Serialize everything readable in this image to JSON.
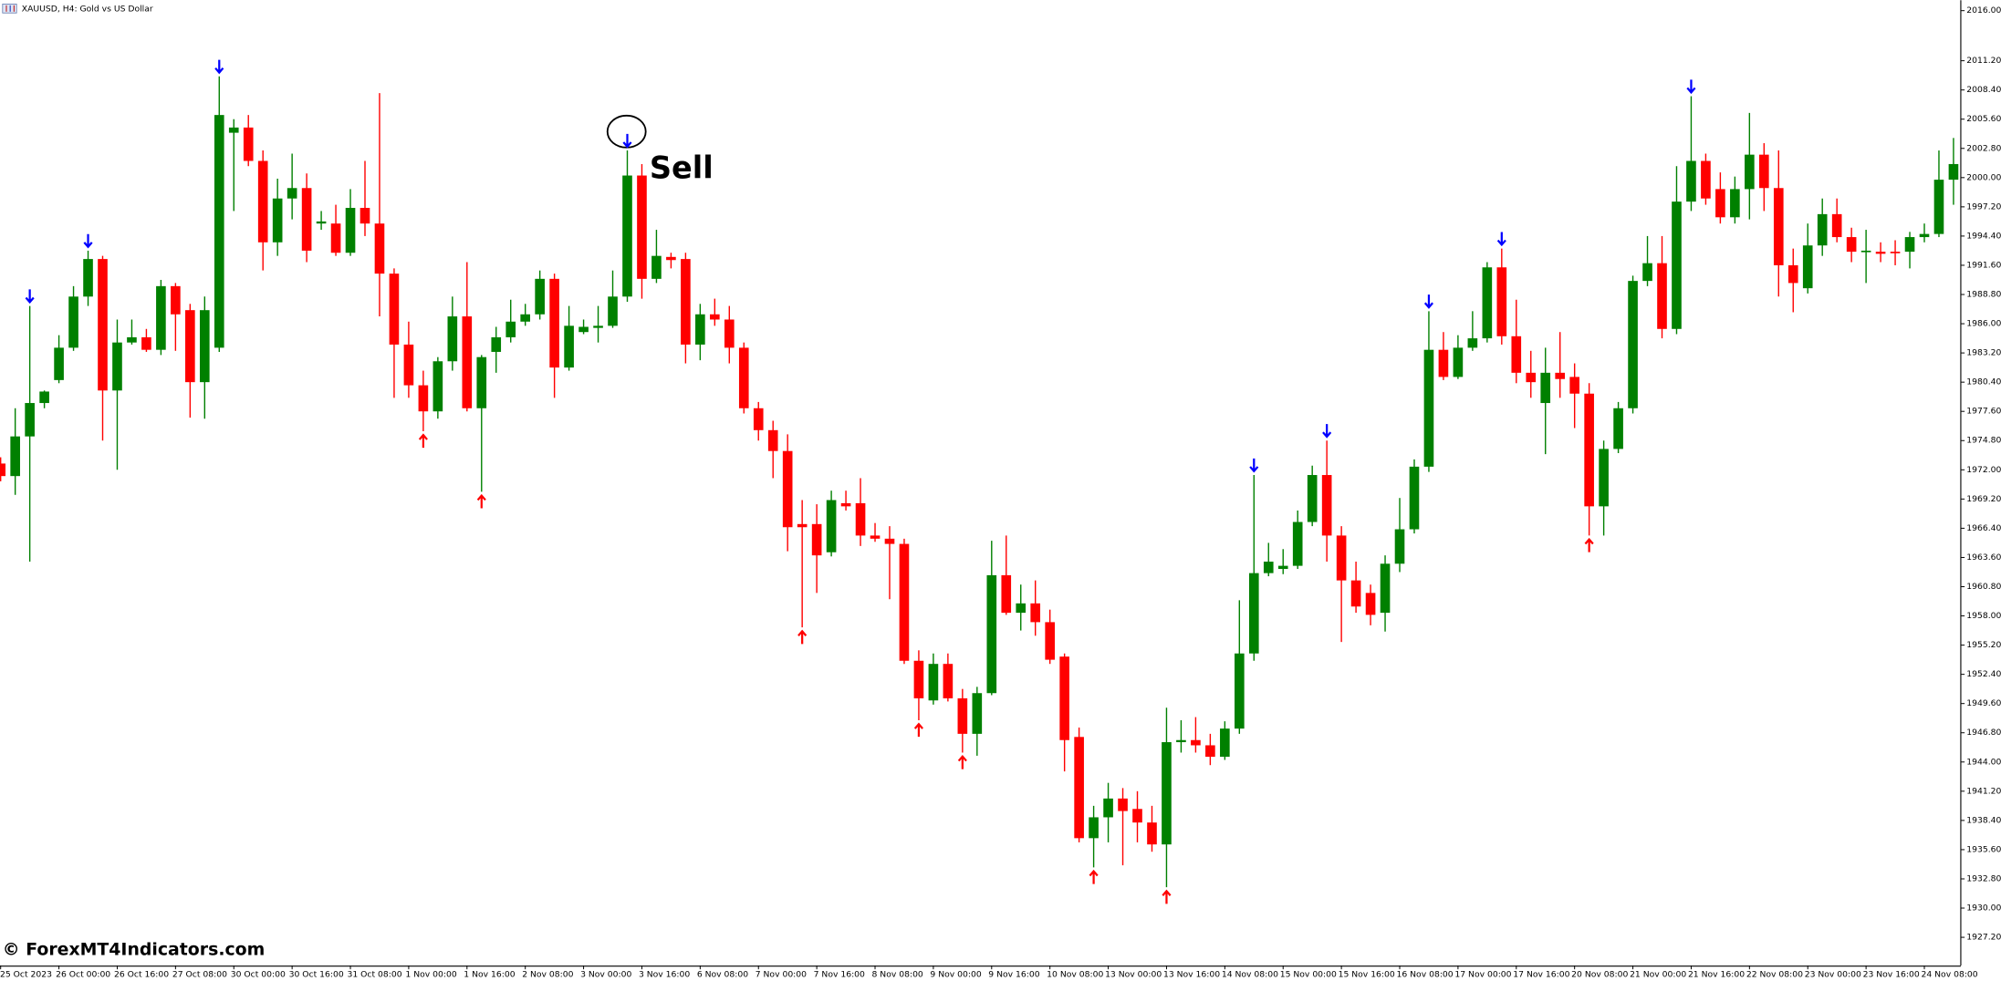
{
  "chart_data": {
    "type": "candlestick",
    "title": "XAUUSD, H4:  Gold vs US Dollar",
    "annotation": "Sell",
    "watermark": "© ForexMT4Indicators.com",
    "up_color": "#008000",
    "down_color": "#ff0000",
    "sell_color": "#0000ff",
    "buy_color": "#ff0000",
    "categories": [
      "25 Oct 2023",
      null,
      null,
      null,
      "26 Oct 00:00",
      null,
      null,
      null,
      "26 Oct 16:00",
      null,
      null,
      null,
      "27 Oct 08:00",
      null,
      null,
      null,
      "30 Oct 00:00",
      null,
      null,
      null,
      "30 Oct 16:00",
      null,
      null,
      null,
      "31 Oct 08:00",
      null,
      null,
      null,
      "1 Nov 00:00",
      null,
      null,
      null,
      "1 Nov 16:00",
      null,
      null,
      null,
      "2 Nov 08:00",
      null,
      null,
      null,
      "3 Nov 00:00",
      null,
      null,
      null,
      "3 Nov 16:00",
      null,
      null,
      null,
      "6 Nov 08:00",
      null,
      null,
      null,
      "7 Nov 00:00",
      null,
      null,
      null,
      "7 Nov 16:00",
      null,
      null,
      null,
      "8 Nov 08:00",
      null,
      null,
      null,
      "9 Nov 00:00",
      null,
      null,
      null,
      "9 Nov 16:00",
      null,
      null,
      null,
      "10 Nov 08:00",
      null,
      null,
      null,
      "13 Nov 00:00",
      null,
      null,
      null,
      "13 Nov 16:00",
      null,
      null,
      null,
      "14 Nov 08:00",
      null,
      null,
      null,
      "15 Nov 00:00",
      null,
      null,
      null,
      "15 Nov 16:00",
      null,
      null,
      null,
      "16 Nov 08:00",
      null,
      null,
      null,
      "17 Nov 00:00",
      null,
      null,
      null,
      "17 Nov 16:00",
      null,
      null,
      null,
      "20 Nov 08:00",
      null,
      null,
      null,
      "21 Nov 00:00",
      null,
      null,
      null,
      "21 Nov 16:00",
      null,
      null,
      null,
      "22 Nov 08:00",
      null,
      null,
      null,
      "23 Nov 00:00",
      null,
      null,
      null,
      "23 Nov 16:00",
      null,
      null,
      null,
      "24 Nov 08:00",
      null,
      null
    ],
    "open": [
      1972.6,
      1971.4,
      1975.2,
      1978.4,
      1980.6,
      1983.7,
      1988.6,
      1992.2,
      1979.6,
      1984.2,
      1984.7,
      1983.5,
      1989.6,
      1987.3,
      1980.4,
      1983.7,
      2004.3,
      2004.8,
      2001.6,
      1993.8,
      1998.0,
      1999.0,
      1995.6,
      1995.6,
      1992.8,
      1997.1,
      1995.6,
      1990.8,
      1984.0,
      1980.1,
      1977.6,
      1982.4,
      1986.7,
      1977.9,
      1983.3,
      1984.7,
      1986.2,
      1986.9,
      1990.3,
      1981.8,
      1985.2,
      1985.6,
      1985.8,
      1988.6,
      2000.2,
      1990.3,
      1992.4,
      1992.2,
      1984.0,
      1986.9,
      1986.4,
      1983.7,
      1977.9,
      1975.8,
      1973.8,
      1966.8,
      1966.8,
      1964.1,
      1968.8,
      1968.8,
      1965.7,
      1965.4,
      1964.9,
      1953.7,
      1949.9,
      1953.4,
      1950.1,
      1946.7,
      1950.6,
      1961.9,
      1958.3,
      1959.2,
      1957.4,
      1954.1,
      1946.4,
      1936.7,
      1938.7,
      1940.5,
      1939.5,
      1938.2,
      1936.1,
      1945.9,
      1946.1,
      1945.6,
      1944.5,
      1947.2,
      1954.4,
      1962.1,
      1962.5,
      1962.8,
      1967.0,
      1971.5,
      1965.7,
      1961.4,
      1960.2,
      1958.3,
      1963.0,
      1966.3,
      1972.3,
      1983.5,
      1980.9,
      1983.7,
      1984.6,
      1991.4,
      1984.8,
      1981.3,
      1978.4,
      1981.3,
      1980.9,
      1979.3,
      1968.5,
      1974.0,
      1977.9,
      1990.1,
      1991.8,
      1985.5,
      1997.7,
      2001.6,
      1998.9,
      1996.2,
      1998.9,
      2002.2,
      1999.0,
      1991.6,
      1989.4,
      1993.5,
      1996.5,
      1994.3,
      1992.9,
      1992.9,
      1992.9,
      1992.9,
      1994.3,
      1994.6,
      1999.8
    ],
    "high": [
      1973.2,
      1977.9,
      1987.7,
      1979.6,
      1984.9,
      1989.6,
      1993.0,
      1992.5,
      1986.4,
      1986.4,
      1985.5,
      1990.2,
      1989.9,
      1987.9,
      1988.6,
      2009.7,
      2005.6,
      2006.0,
      2002.6,
      1999.9,
      2002.3,
      2000.4,
      1996.8,
      1997.4,
      1998.9,
      2001.6,
      2008.1,
      1991.3,
      1986.2,
      1981.5,
      1982.8,
      1988.6,
      1991.9,
      1983.0,
      1985.7,
      1988.3,
      1987.9,
      1991.1,
      1990.8,
      1987.7,
      1986.4,
      1987.7,
      1991.1,
      2002.6,
      2001.3,
      1995.0,
      1992.8,
      1992.8,
      1987.9,
      1988.4,
      1987.7,
      1984.2,
      1978.5,
      1976.7,
      1975.4,
      1969.1,
      1968.7,
      1970.0,
      1970.0,
      1971.2,
      1966.9,
      1966.6,
      1965.4,
      1954.7,
      1954.4,
      1954.4,
      1951.0,
      1951.2,
      1965.2,
      1965.7,
      1961.0,
      1961.4,
      1958.6,
      1954.4,
      1947.3,
      1939.8,
      1942.0,
      1941.5,
      1941.2,
      1939.8,
      1949.2,
      1948.0,
      1948.3,
      1946.7,
      1947.9,
      1959.5,
      1971.5,
      1965.0,
      1964.4,
      1968.1,
      1972.4,
      1974.8,
      1966.6,
      1963.2,
      1961.0,
      1963.8,
      1969.3,
      1973.0,
      1987.2,
      1985.2,
      1984.9,
      1987.2,
      1991.9,
      1993.2,
      1988.3,
      1983.4,
      1983.7,
      1985.2,
      1982.2,
      1980.3,
      1974.8,
      1978.5,
      1990.6,
      1994.4,
      1994.4,
      2001.1,
      2007.8,
      2002.3,
      2000.5,
      2000.1,
      2006.2,
      2003.3,
      2002.6,
      1993.2,
      1995.6,
      1998.0,
      1998.0,
      1995.2,
      1995.0,
      1993.8,
      1994.0,
      1994.8,
      1995.6,
      2002.6,
      2003.8
    ],
    "low": [
      1970.9,
      1969.6,
      1963.2,
      1977.9,
      1980.3,
      1983.4,
      1987.7,
      1974.8,
      1972.0,
      1984.0,
      1983.3,
      1983.0,
      1983.4,
      1977.0,
      1976.9,
      1983.3,
      1996.8,
      2001.1,
      1991.1,
      1992.5,
      1996.0,
      1991.9,
      1995.0,
      1992.5,
      1992.5,
      1994.4,
      1986.7,
      1978.9,
      1978.9,
      1975.7,
      1976.9,
      1981.5,
      1977.6,
      1969.9,
      1981.3,
      1984.2,
      1985.8,
      1986.4,
      1978.9,
      1981.5,
      1985.0,
      1984.2,
      1985.6,
      1988.1,
      1988.4,
      1989.9,
      1991.3,
      1982.2,
      1982.5,
      1985.8,
      1982.2,
      1977.4,
      1974.8,
      1971.2,
      1964.2,
      1956.9,
      1960.2,
      1963.7,
      1968.1,
      1964.7,
      1965.1,
      1959.6,
      1953.4,
      1948.0,
      1949.5,
      1949.8,
      1944.9,
      1944.6,
      1950.4,
      1958.1,
      1956.6,
      1956.1,
      1953.4,
      1943.1,
      1936.3,
      1933.9,
      1936.3,
      1934.1,
      1936.3,
      1935.4,
      1932.0,
      1944.9,
      1944.9,
      1943.7,
      1944.2,
      1946.7,
      1953.7,
      1961.8,
      1962.0,
      1962.5,
      1966.6,
      1963.2,
      1955.5,
      1958.3,
      1957.1,
      1956.5,
      1962.2,
      1965.9,
      1971.8,
      1980.6,
      1980.7,
      1983.4,
      1984.2,
      1984.0,
      1980.3,
      1978.9,
      1973.5,
      1978.9,
      1976.0,
      1965.7,
      1965.7,
      1973.6,
      1977.4,
      1989.6,
      1984.6,
      1985.0,
      1996.8,
      1997.4,
      1995.6,
      1995.6,
      1996.0,
      1996.8,
      1988.6,
      1987.1,
      1988.9,
      1992.5,
      1993.8,
      1991.9,
      1989.9,
      1991.9,
      1991.6,
      1991.3,
      1993.8,
      1994.3,
      1997.4
    ],
    "close": [
      1971.4,
      1975.2,
      1978.4,
      1979.5,
      1983.7,
      1988.6,
      1992.2,
      1979.6,
      1984.2,
      1984.7,
      1983.5,
      1989.6,
      1986.9,
      1980.4,
      1987.3,
      2006.0,
      2004.8,
      2001.6,
      1993.8,
      1998.0,
      1999.0,
      1993.0,
      1995.8,
      1992.8,
      1997.1,
      1995.6,
      1990.8,
      1984.0,
      1980.1,
      1977.6,
      1982.4,
      1986.7,
      1977.9,
      1982.8,
      1984.7,
      1986.2,
      1986.9,
      1990.3,
      1981.8,
      1985.8,
      1985.7,
      1985.8,
      1988.6,
      2000.2,
      1990.3,
      1992.5,
      1992.1,
      1984.0,
      1986.9,
      1986.4,
      1983.7,
      1977.9,
      1975.8,
      1973.8,
      1966.5,
      1966.5,
      1963.8,
      1969.1,
      1968.5,
      1965.7,
      1965.4,
      1964.9,
      1953.7,
      1950.1,
      1953.4,
      1950.1,
      1946.7,
      1950.6,
      1961.9,
      1958.3,
      1959.2,
      1957.4,
      1953.8,
      1946.1,
      1936.7,
      1938.7,
      1940.5,
      1939.3,
      1938.2,
      1936.1,
      1945.9,
      1946.1,
      1945.6,
      1944.5,
      1947.2,
      1954.4,
      1962.1,
      1963.2,
      1962.8,
      1967.0,
      1971.5,
      1965.7,
      1961.4,
      1958.9,
      1958.1,
      1963.0,
      1966.3,
      1972.3,
      1983.5,
      1980.9,
      1983.7,
      1984.6,
      1991.4,
      1984.8,
      1981.3,
      1980.4,
      1981.3,
      1980.7,
      1979.3,
      1968.5,
      1974.0,
      1977.9,
      1990.1,
      1991.8,
      1985.5,
      1997.7,
      2001.6,
      1998.0,
      1996.2,
      1998.9,
      2002.2,
      1999.0,
      1991.6,
      1989.9,
      1993.5,
      1996.5,
      1994.3,
      1992.9,
      1993.0,
      1992.7,
      1992.8,
      1994.3,
      1994.6,
      1999.8,
      2001.3
    ],
    "sell_signals": [
      2,
      6,
      15,
      43,
      86,
      91,
      98,
      103,
      116
    ],
    "buy_signals": [
      29,
      33,
      55,
      63,
      66,
      75,
      80,
      109
    ],
    "ylim": [
      1924.5,
      2017.0
    ],
    "yticks": [
      {
        "value": 1927.2,
        "label": "1927.20"
      },
      {
        "value": 1930,
        "label": "1930.00"
      },
      {
        "value": 1932.8,
        "label": "1932.80"
      },
      {
        "value": 1935.6,
        "label": "1935.60"
      },
      {
        "value": 1938.4,
        "label": "1938.40"
      },
      {
        "value": 1941.2,
        "label": "1941.20"
      },
      {
        "value": 1944,
        "label": "1944.00"
      },
      {
        "value": 1946.8,
        "label": "1946.80"
      },
      {
        "value": 1949.6,
        "label": "1949.60"
      },
      {
        "value": 1952.4,
        "label": "1952.40"
      },
      {
        "value": 1955.2,
        "label": "1955.20"
      },
      {
        "value": 1958,
        "label": "1958.00"
      },
      {
        "value": 1960.8,
        "label": "1960.80"
      },
      {
        "value": 1963.6,
        "label": "1963.60"
      },
      {
        "value": 1966.4,
        "label": "1966.40"
      },
      {
        "value": 1969.2,
        "label": "1969.20"
      },
      {
        "value": 1972,
        "label": "1972.00"
      },
      {
        "value": 1974.8,
        "label": "1974.80"
      },
      {
        "value": 1977.6,
        "label": "1977.60"
      },
      {
        "value": 1980.4,
        "label": "1980.40"
      },
      {
        "value": 1983.2,
        "label": "1983.20"
      },
      {
        "value": 1986,
        "label": "1986.00"
      },
      {
        "value": 1988.8,
        "label": "1988.80"
      },
      {
        "value": 1991.6,
        "label": "1991.60"
      },
      {
        "value": 1994.4,
        "label": "1994.40"
      },
      {
        "value": 1997.2,
        "label": "1997.20"
      },
      {
        "value": 2000,
        "label": "2000.00"
      },
      {
        "value": 2002.8,
        "label": "2002.80"
      },
      {
        "value": 2005.6,
        "label": "2005.60"
      },
      {
        "value": 2008.4,
        "label": "2008.40"
      },
      {
        "value": 2011.2,
        "label": "2011.20"
      },
      {
        "value": 2016,
        "label": "2016.00"
      }
    ],
    "grid": false
  }
}
